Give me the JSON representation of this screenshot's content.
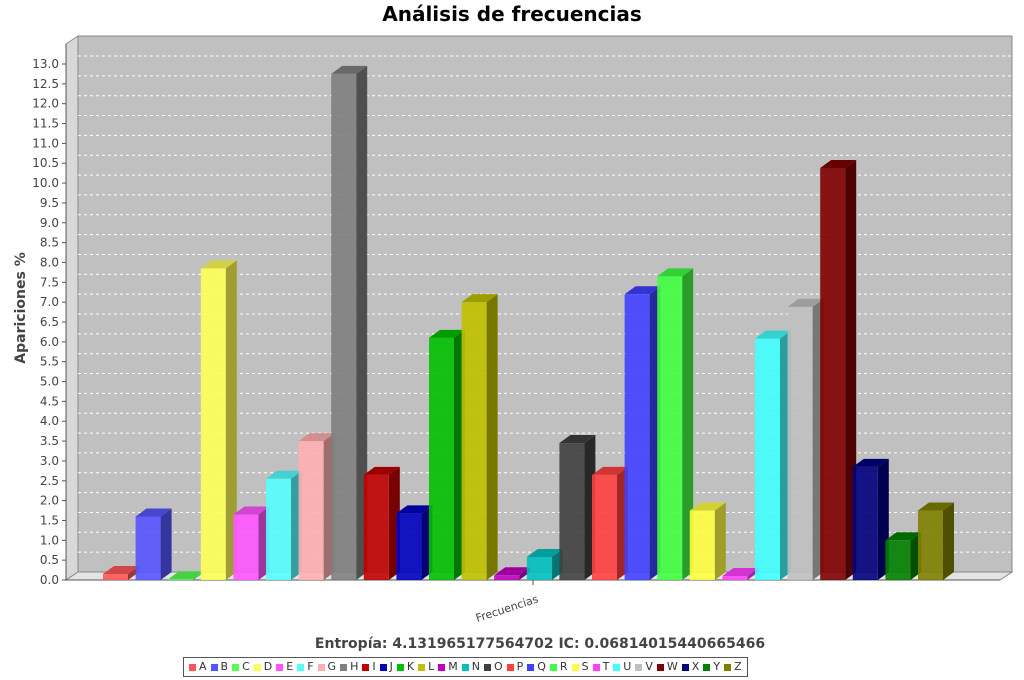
{
  "chart_data": {
    "type": "bar",
    "title": "Análisis de frecuencias",
    "subtitle": "Entropía: 4.131965177564702  IC: 0.06814015440665466",
    "xlabel": "",
    "ylabel": "Apariciones %",
    "categories": [
      "Frecuencias"
    ],
    "ylim": [
      0,
      13.0
    ],
    "ytick_step": 0.5,
    "grid": true,
    "legend_position": "bottom",
    "series": [
      {
        "name": "A",
        "value": 0.15,
        "color": "#ff5555"
      },
      {
        "name": "B",
        "value": 1.6,
        "color": "#5555ff"
      },
      {
        "name": "C",
        "value": 0.02,
        "color": "#55ff55"
      },
      {
        "name": "D",
        "value": 7.85,
        "color": "#ffff55"
      },
      {
        "name": "E",
        "value": 1.65,
        "color": "#ff55ff"
      },
      {
        "name": "F",
        "value": 2.55,
        "color": "#55ffff"
      },
      {
        "name": "G",
        "value": 3.5,
        "color": "#ffafaf"
      },
      {
        "name": "H",
        "value": 12.75,
        "color": "#808080"
      },
      {
        "name": "I",
        "value": 2.65,
        "color": "#c00000"
      },
      {
        "name": "J",
        "value": 1.68,
        "color": "#0000c0"
      },
      {
        "name": "K",
        "value": 6.1,
        "color": "#00c000"
      },
      {
        "name": "L",
        "value": 7.0,
        "color": "#c0c000"
      },
      {
        "name": "M",
        "value": 0.12,
        "color": "#c000c0"
      },
      {
        "name": "N",
        "value": 0.58,
        "color": "#00c0c0"
      },
      {
        "name": "O",
        "value": 3.45,
        "color": "#404040"
      },
      {
        "name": "P",
        "value": 2.65,
        "color": "#ff4040"
      },
      {
        "name": "Q",
        "value": 7.2,
        "color": "#4040ff"
      },
      {
        "name": "R",
        "value": 7.65,
        "color": "#40ff40"
      },
      {
        "name": "S",
        "value": 1.75,
        "color": "#ffff40"
      },
      {
        "name": "T",
        "value": 0.1,
        "color": "#ff40ff"
      },
      {
        "name": "U",
        "value": 6.08,
        "color": "#40ffff"
      },
      {
        "name": "V",
        "value": 6.88,
        "color": "#c0c0c0"
      },
      {
        "name": "W",
        "value": 10.38,
        "color": "#800000"
      },
      {
        "name": "X",
        "value": 2.85,
        "color": "#000080"
      },
      {
        "name": "Y",
        "value": 1.0,
        "color": "#008000"
      },
      {
        "name": "Z",
        "value": 1.75,
        "color": "#808000"
      }
    ]
  }
}
